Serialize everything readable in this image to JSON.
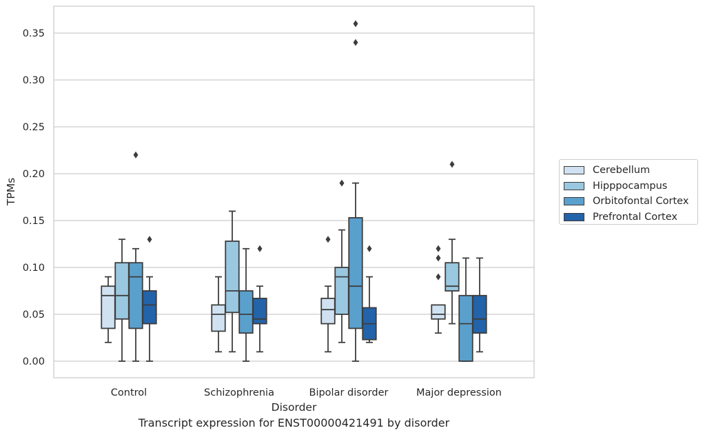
{
  "chart_data": {
    "type": "boxplot",
    "title": "",
    "xlabel": "Disorder",
    "ylabel": "TPMs",
    "caption": "Transcript expression for ENST00000421491 by disorder",
    "ylim": [
      -0.018,
      0.378
    ],
    "yticks": [
      "0.00",
      "0.05",
      "0.10",
      "0.15",
      "0.20",
      "0.25",
      "0.30",
      "0.35"
    ],
    "grid": "horizontal",
    "legend_position": "right",
    "categories": [
      "Control",
      "Schizophrenia",
      "Bipolar disorder",
      "Major depression"
    ],
    "series": [
      {
        "name": "Cerebellum",
        "color": "#d0e2f2",
        "boxes": [
          {
            "whislo": 0.02,
            "q1": 0.035,
            "med": 0.07,
            "q3": 0.08,
            "whishi": 0.09,
            "fliers": []
          },
          {
            "whislo": 0.01,
            "q1": 0.032,
            "med": 0.05,
            "q3": 0.06,
            "whishi": 0.09,
            "fliers": []
          },
          {
            "whislo": 0.01,
            "q1": 0.04,
            "med": 0.055,
            "q3": 0.067,
            "whishi": 0.08,
            "fliers": [
              0.13
            ]
          },
          {
            "whislo": 0.03,
            "q1": 0.045,
            "med": 0.05,
            "q3": 0.06,
            "whishi": 0.06,
            "fliers": [
              0.12,
              0.11,
              0.09
            ]
          }
        ]
      },
      {
        "name": "Hipppocampus",
        "color": "#9ac8e0",
        "boxes": [
          {
            "whislo": 0.0,
            "q1": 0.045,
            "med": 0.07,
            "q3": 0.105,
            "whishi": 0.13,
            "fliers": []
          },
          {
            "whislo": 0.01,
            "q1": 0.052,
            "med": 0.075,
            "q3": 0.128,
            "whishi": 0.16,
            "fliers": []
          },
          {
            "whislo": 0.02,
            "q1": 0.05,
            "med": 0.09,
            "q3": 0.1,
            "whishi": 0.14,
            "fliers": [
              0.19
            ]
          },
          {
            "whislo": 0.04,
            "q1": 0.075,
            "med": 0.08,
            "q3": 0.105,
            "whishi": 0.13,
            "fliers": [
              0.21
            ]
          }
        ]
      },
      {
        "name": "Orbitofontal Cortex",
        "color": "#5aa0cd",
        "boxes": [
          {
            "whislo": 0.0,
            "q1": 0.035,
            "med": 0.09,
            "q3": 0.105,
            "whishi": 0.12,
            "fliers": [
              0.22
            ]
          },
          {
            "whislo": 0.0,
            "q1": 0.03,
            "med": 0.05,
            "q3": 0.075,
            "whishi": 0.12,
            "fliers": []
          },
          {
            "whislo": 0.0,
            "q1": 0.035,
            "med": 0.08,
            "q3": 0.153,
            "whishi": 0.19,
            "fliers": [
              0.36,
              0.34
            ]
          },
          {
            "whislo": 0.0,
            "q1": 0.0,
            "med": 0.04,
            "q3": 0.07,
            "whishi": 0.11,
            "fliers": []
          }
        ]
      },
      {
        "name": "Prefrontal Cortex",
        "color": "#2363a9",
        "boxes": [
          {
            "whislo": 0.0,
            "q1": 0.04,
            "med": 0.06,
            "q3": 0.075,
            "whishi": 0.09,
            "fliers": [
              0.13
            ]
          },
          {
            "whislo": 0.01,
            "q1": 0.04,
            "med": 0.045,
            "q3": 0.067,
            "whishi": 0.08,
            "fliers": [
              0.12
            ]
          },
          {
            "whislo": 0.02,
            "q1": 0.023,
            "med": 0.04,
            "q3": 0.057,
            "whishi": 0.09,
            "fliers": [
              0.12
            ]
          },
          {
            "whislo": 0.01,
            "q1": 0.03,
            "med": 0.045,
            "q3": 0.07,
            "whishi": 0.11,
            "fliers": []
          }
        ]
      }
    ]
  }
}
